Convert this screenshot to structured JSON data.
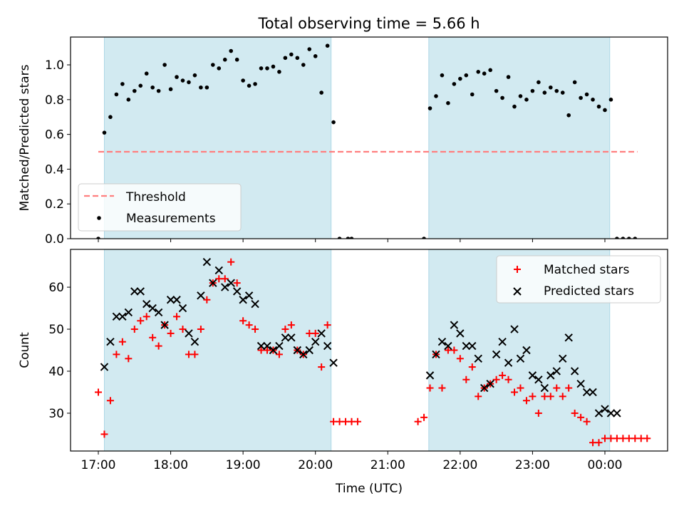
{
  "title": "Total observing time = 5.66 h",
  "xlabel": "Time (UTC)",
  "x_ticks": [
    "17:00",
    "18:00",
    "19:00",
    "20:00",
    "21:00",
    "22:00",
    "23:00",
    "00:00"
  ],
  "colors": {
    "shade": "#add8e6",
    "threshold": "#ff7f7f",
    "matched": "#ff0000",
    "predicted": "#000000",
    "measurement": "#000000"
  },
  "chart_data": [
    {
      "type": "scatter",
      "ylabel": "Matched/Predicted stars",
      "ylim": [
        0,
        1.16
      ],
      "y_ticks": [
        "0.0",
        "0.2",
        "0.4",
        "0.6",
        "0.8",
        "1.0"
      ],
      "legend_position": "lower-left",
      "shaded_intervals": [
        [
          "17:05",
          "20:13"
        ],
        [
          "21:34",
          "00:04"
        ]
      ],
      "threshold": {
        "name": "Threshold",
        "value": 0.5,
        "x_range": [
          "17:00",
          "00:27"
        ]
      },
      "series": [
        {
          "name": "Measurements",
          "x": [
            "17:00",
            "17:05",
            "17:10",
            "17:15",
            "17:20",
            "17:25",
            "17:30",
            "17:35",
            "17:40",
            "17:45",
            "17:50",
            "17:55",
            "18:00",
            "18:05",
            "18:10",
            "18:15",
            "18:20",
            "18:25",
            "18:30",
            "18:35",
            "18:40",
            "18:45",
            "18:50",
            "18:55",
            "19:00",
            "19:05",
            "19:10",
            "19:15",
            "19:20",
            "19:25",
            "19:30",
            "19:35",
            "19:40",
            "19:45",
            "19:50",
            "19:55",
            "20:00",
            "20:05",
            "20:10",
            "20:15",
            "20:20",
            "20:27",
            "20:30",
            "21:30",
            "21:35",
            "21:40",
            "21:45",
            "21:50",
            "21:55",
            "22:00",
            "22:05",
            "22:10",
            "22:15",
            "22:20",
            "22:25",
            "22:30",
            "22:35",
            "22:40",
            "22:45",
            "22:50",
            "22:55",
            "23:00",
            "23:05",
            "23:10",
            "23:15",
            "23:20",
            "23:25",
            "23:30",
            "23:35",
            "23:40",
            "23:45",
            "23:50",
            "23:55",
            "00:00",
            "00:05",
            "00:10",
            "00:15",
            "00:20",
            "00:25"
          ],
          "y": [
            0.0,
            0.61,
            0.7,
            0.83,
            0.89,
            0.8,
            0.85,
            0.88,
            0.95,
            0.87,
            0.85,
            1.0,
            0.86,
            0.93,
            0.91,
            0.9,
            0.94,
            0.87,
            0.87,
            1.0,
            0.98,
            1.03,
            1.08,
            1.03,
            0.91,
            0.88,
            0.89,
            0.98,
            0.98,
            0.99,
            0.96,
            1.04,
            1.06,
            1.04,
            1.0,
            1.09,
            1.05,
            0.84,
            1.11,
            0.67,
            0.0,
            0.0,
            0.0,
            0.0,
            0.75,
            0.82,
            0.94,
            0.78,
            0.89,
            0.92,
            0.94,
            0.83,
            0.96,
            0.95,
            0.97,
            0.85,
            0.81,
            0.93,
            0.76,
            0.82,
            0.8,
            0.85,
            0.9,
            0.84,
            0.87,
            0.85,
            0.84,
            0.71,
            0.9,
            0.81,
            0.83,
            0.8,
            0.76,
            0.74,
            0.8,
            0.0,
            0.0,
            0.0,
            0.0
          ]
        }
      ]
    },
    {
      "type": "scatter",
      "ylabel": "Count",
      "ylim": [
        21,
        69
      ],
      "y_ticks": [
        "30",
        "40",
        "50",
        "60"
      ],
      "legend_position": "upper-right",
      "shaded_intervals": [
        [
          "17:05",
          "20:13"
        ],
        [
          "21:34",
          "00:04"
        ]
      ],
      "series": [
        {
          "name": "Matched stars",
          "x": [
            "17:00",
            "17:05",
            "17:10",
            "17:15",
            "17:20",
            "17:25",
            "17:30",
            "17:35",
            "17:40",
            "17:45",
            "17:50",
            "17:55",
            "18:00",
            "18:05",
            "18:10",
            "18:15",
            "18:20",
            "18:25",
            "18:30",
            "18:35",
            "18:40",
            "18:45",
            "18:50",
            "18:55",
            "19:00",
            "19:05",
            "19:10",
            "19:15",
            "19:20",
            "19:25",
            "19:30",
            "19:35",
            "19:40",
            "19:45",
            "19:50",
            "19:55",
            "20:00",
            "20:05",
            "20:10",
            "20:15",
            "20:20",
            "20:25",
            "20:30",
            "20:35",
            "21:25",
            "21:30",
            "21:35",
            "21:40",
            "21:45",
            "21:50",
            "21:55",
            "22:00",
            "22:05",
            "22:10",
            "22:15",
            "22:20",
            "22:25",
            "22:30",
            "22:35",
            "22:40",
            "22:45",
            "22:50",
            "22:55",
            "23:00",
            "23:05",
            "23:10",
            "23:15",
            "23:20",
            "23:25",
            "23:30",
            "23:35",
            "23:40",
            "23:45",
            "23:50",
            "23:55",
            "00:00",
            "00:05",
            "00:10",
            "00:15",
            "00:20",
            "00:25",
            "00:30",
            "00:35"
          ],
          "y": [
            35,
            25,
            33,
            44,
            47,
            43,
            50,
            52,
            53,
            48,
            46,
            51,
            49,
            53,
            50,
            44,
            44,
            50,
            57,
            61,
            62,
            62,
            66,
            61,
            52,
            51,
            50,
            45,
            45,
            45,
            44,
            50,
            51,
            45,
            44,
            49,
            49,
            41,
            51,
            28,
            28,
            28,
            28,
            28,
            28,
            29,
            36,
            44,
            36,
            45,
            45,
            43,
            38,
            41,
            34,
            36,
            37,
            38,
            39,
            38,
            35,
            36,
            33,
            34,
            30,
            34,
            34,
            36,
            34,
            36,
            30,
            29,
            28,
            23,
            23,
            24,
            24,
            24,
            24,
            24,
            24,
            24,
            24
          ]
        },
        {
          "name": "Predicted stars",
          "x": [
            "17:05",
            "17:10",
            "17:15",
            "17:20",
            "17:25",
            "17:30",
            "17:35",
            "17:40",
            "17:45",
            "17:50",
            "17:55",
            "18:00",
            "18:05",
            "18:10",
            "18:15",
            "18:20",
            "18:25",
            "18:30",
            "18:35",
            "18:40",
            "18:45",
            "18:50",
            "18:55",
            "19:00",
            "19:05",
            "19:10",
            "19:15",
            "19:20",
            "19:25",
            "19:30",
            "19:35",
            "19:40",
            "19:45",
            "19:50",
            "19:55",
            "20:00",
            "20:05",
            "20:10",
            "20:15",
            "21:35",
            "21:40",
            "21:45",
            "21:50",
            "21:55",
            "22:00",
            "22:05",
            "22:10",
            "22:15",
            "22:20",
            "22:25",
            "22:30",
            "22:35",
            "22:40",
            "22:45",
            "22:50",
            "22:55",
            "23:00",
            "23:05",
            "23:10",
            "23:15",
            "23:20",
            "23:25",
            "23:30",
            "23:35",
            "23:40",
            "23:45",
            "23:50",
            "23:55",
            "00:00",
            "00:05",
            "00:10"
          ],
          "y": [
            41,
            47,
            53,
            53,
            54,
            59,
            59,
            56,
            55,
            54,
            51,
            57,
            57,
            55,
            49,
            47,
            58,
            66,
            61,
            64,
            60,
            61,
            59,
            57,
            58,
            56,
            46,
            46,
            45,
            46,
            48,
            48,
            45,
            44,
            45,
            47,
            49,
            46,
            42,
            39,
            44,
            47,
            46,
            51,
            49,
            46,
            46,
            43,
            36,
            37,
            44,
            47,
            42,
            50,
            43,
            45,
            39,
            38,
            36,
            39,
            40,
            43,
            48,
            40,
            37,
            35,
            35,
            30,
            31,
            30,
            30
          ]
        }
      ]
    }
  ]
}
